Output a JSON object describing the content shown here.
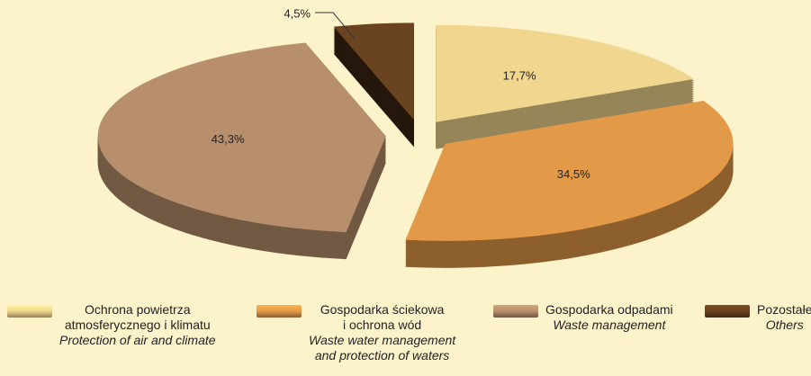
{
  "chart_data": {
    "type": "pie",
    "categories": [
      "Ochrona powietrza\natmosferycznego i klimatu",
      "Gospodarka ściekowa\ni ochrona wód",
      "Gospodarka odpadami",
      "Pozostałe"
    ],
    "categories_en": [
      "Protection of air and climate",
      "Waste water management\nand protection of waters",
      "Waste management",
      "Others"
    ],
    "values": [
      17.7,
      34.5,
      43.3,
      4.5
    ],
    "value_labels": [
      "17,7%",
      "34,5%",
      "43,3%",
      "4,5%"
    ],
    "colors": [
      "#f0d68e",
      "#e29a48",
      "#b78f6c",
      "#6a4320"
    ]
  }
}
